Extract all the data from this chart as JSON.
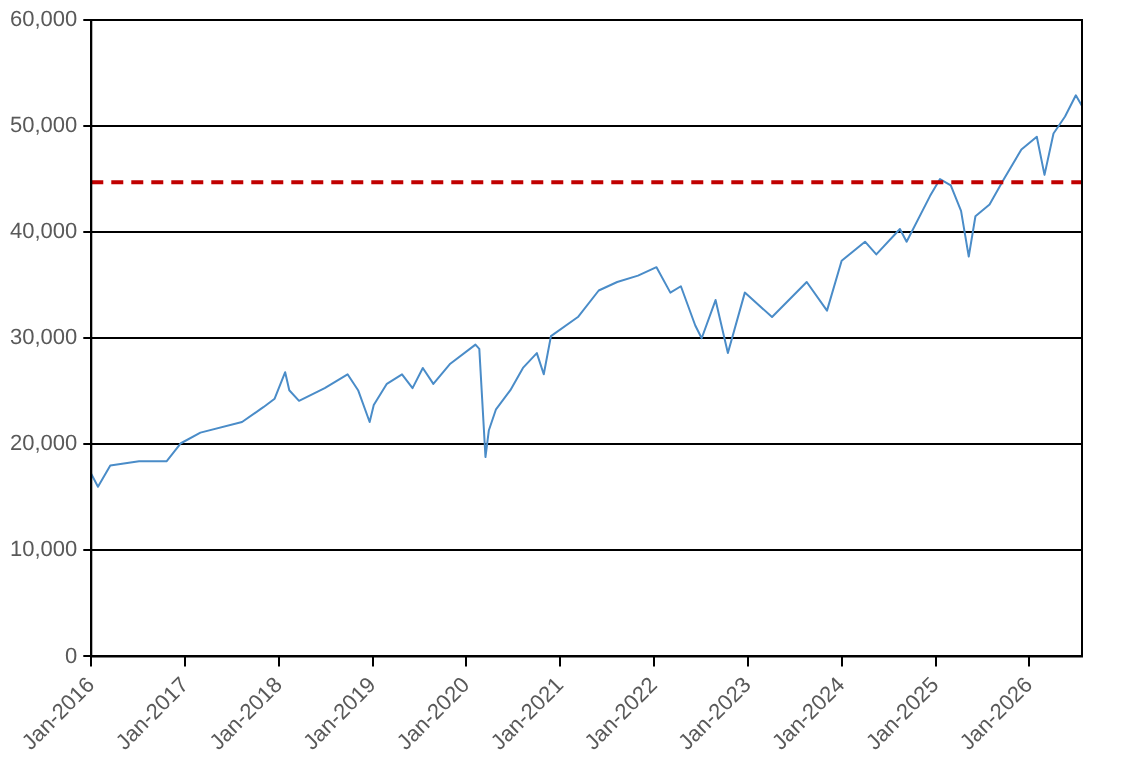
{
  "chart_data": {
    "type": "line",
    "x": [
      "2016-01-01",
      "2016-01-27",
      "2016-03-15",
      "2016-07-05",
      "2016-10-20",
      "2016-12-15",
      "2017-03-01",
      "2017-08-10",
      "2017-11-01",
      "2017-12-15",
      "2018-01-25",
      "2018-02-10",
      "2018-03-20",
      "2018-06-28",
      "2018-09-25",
      "2018-11-05",
      "2018-12-20",
      "2019-01-05",
      "2019-02-25",
      "2019-04-25",
      "2019-06-05",
      "2019-07-15",
      "2019-08-25",
      "2019-10-30",
      "2020-02-05",
      "2020-02-20",
      "2020-03-15",
      "2020-03-28",
      "2020-04-25",
      "2020-06-20",
      "2020-08-08",
      "2020-10-01",
      "2020-10-28",
      "2020-11-25",
      "2021-03-10",
      "2021-05-30",
      "2021-08-10",
      "2021-10-30",
      "2022-01-10",
      "2022-03-05",
      "2022-04-15",
      "2022-06-10",
      "2022-07-05",
      "2022-08-28",
      "2022-10-15",
      "2022-12-20",
      "2023-04-05",
      "2023-08-18",
      "2023-11-05",
      "2024-01-01",
      "2024-04-01",
      "2024-05-15",
      "2024-08-15",
      "2024-09-10",
      "2024-12-10",
      "2025-01-18",
      "2025-03-01",
      "2025-04-10",
      "2025-05-10",
      "2025-06-05",
      "2025-07-30",
      "2025-09-24",
      "2025-12-01",
      "2026-01-30",
      "2026-03-01",
      "2026-04-05",
      "2026-05-20",
      "2026-07-01",
      "2026-07-25"
    ],
    "series": [
      {
        "color": "#4a8cc8",
        "values": [
          17200,
          16000,
          18000,
          18400,
          18400,
          20100,
          21100,
          22100,
          23500,
          24300,
          26800,
          25100,
          24100,
          25300,
          26600,
          25100,
          22100,
          23700,
          25700,
          26600,
          25300,
          27200,
          25700,
          27600,
          29400,
          29000,
          18800,
          21300,
          23300,
          25100,
          27200,
          28600,
          26600,
          30200,
          32000,
          34500,
          35300,
          35900,
          36700,
          34300,
          34900,
          31200,
          30000,
          33600,
          28600,
          34300,
          32000,
          35300,
          32600,
          37300,
          39100,
          37900,
          40300,
          39100,
          43400,
          45000,
          44400,
          42000,
          37700,
          41500,
          42600,
          45000,
          47800,
          49000,
          45400,
          49300,
          50900,
          52900,
          51900
        ]
      }
    ],
    "xlim": [
      "2016-01-01",
      "2026-07-25"
    ],
    "xticks": [
      {
        "value": "2016-01-01",
        "label": "Jan-2016"
      },
      {
        "value": "2017-01-01",
        "label": "Jan-2017"
      },
      {
        "value": "2018-01-01",
        "label": "Jan-2018"
      },
      {
        "value": "2019-01-01",
        "label": "Jan-2019"
      },
      {
        "value": "2020-01-01",
        "label": "Jan-2020"
      },
      {
        "value": "2021-01-01",
        "label": "Jan-2021"
      },
      {
        "value": "2022-01-01",
        "label": "Jan-2022"
      },
      {
        "value": "2023-01-01",
        "label": "Jan-2023"
      },
      {
        "value": "2024-01-01",
        "label": "Jan-2024"
      },
      {
        "value": "2025-01-01",
        "label": "Jan-2025"
      },
      {
        "value": "2026-01-01",
        "label": "Jan-2026"
      }
    ],
    "ylim": [
      0,
      60000
    ],
    "yticks": [
      {
        "value": 0,
        "label": "0"
      },
      {
        "value": 10000,
        "label": "10,000"
      },
      {
        "value": 20000,
        "label": "20,000"
      },
      {
        "value": 30000,
        "label": "30,000"
      },
      {
        "value": 40000,
        "label": "40,000"
      },
      {
        "value": 50000,
        "label": "50,000"
      },
      {
        "value": 60000,
        "label": "60,000"
      }
    ],
    "ref_lines": [
      {
        "axis": "y",
        "value": 44700,
        "color": "#c00000",
        "line_style": "dashed"
      }
    ],
    "grid": "y",
    "legend": false,
    "marker": "none",
    "line_style": "solid"
  }
}
